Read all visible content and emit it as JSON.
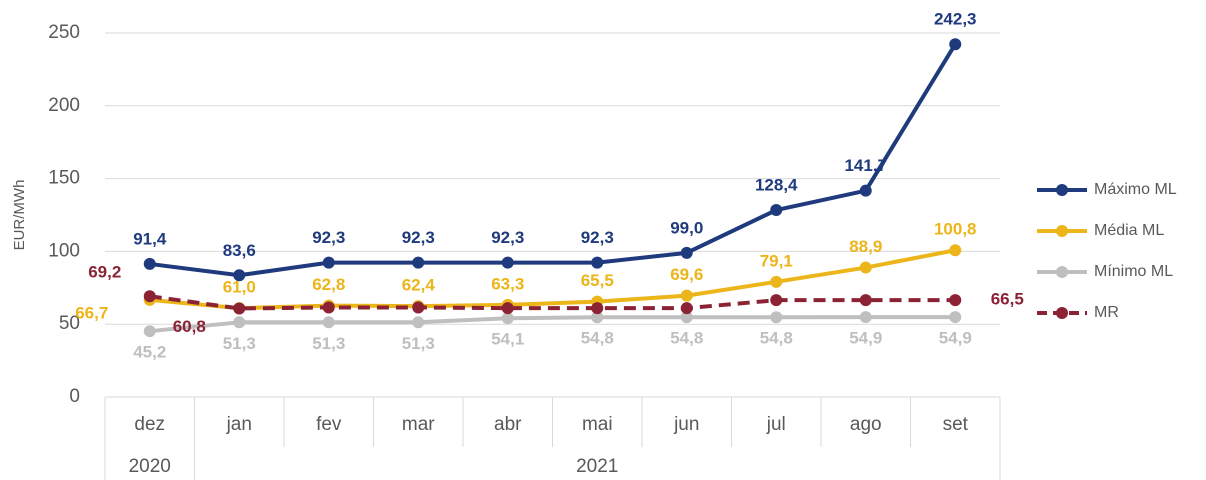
{
  "chart_data": {
    "type": "line",
    "y_label": "EUR/MWh",
    "categories": [
      "dez",
      "jan",
      "fev",
      "mar",
      "abr",
      "mai",
      "jun",
      "jul",
      "ago",
      "set"
    ],
    "x_groups": [
      {
        "label": "2020",
        "count": 1
      },
      {
        "label": "2021",
        "count": 9
      }
    ],
    "series": [
      {
        "name": "Máximo ML",
        "color": "#1f3a7d",
        "dashed": false,
        "values": [
          91.4,
          83.6,
          92.3,
          92.3,
          92.3,
          92.3,
          99.0,
          128.4,
          141.7,
          242.3
        ],
        "value_labels": [
          "91,4",
          "83,6",
          "92,3",
          "92,3",
          "92,3",
          "92,3",
          "99,0",
          "128,4",
          "141,7",
          "242,3"
        ]
      },
      {
        "name": "Média ML",
        "color": "#ecb51a",
        "dashed": false,
        "values": [
          66.7,
          61.0,
          62.8,
          62.4,
          63.3,
          65.5,
          69.6,
          79.1,
          88.9,
          100.8
        ],
        "value_labels": [
          "66,7",
          "61,0",
          "62,8",
          "62,4",
          "63,3",
          "65,5",
          "69,6",
          "79,1",
          "88,9",
          "100,8"
        ]
      },
      {
        "name": "Mínimo ML",
        "color": "#bfbfbf",
        "dashed": false,
        "values": [
          45.2,
          51.3,
          51.3,
          51.3,
          54.1,
          54.8,
          54.8,
          54.8,
          54.9,
          54.9
        ],
        "value_labels": [
          "45,2",
          "51,3",
          "51,3",
          "51,3",
          "54,1",
          "54,8",
          "54,8",
          "54,8",
          "54,9",
          "54,9"
        ]
      },
      {
        "name": "MR",
        "color": "#8b2335",
        "dashed": true,
        "values": [
          69.2,
          60.8,
          61.5,
          61.5,
          61.0,
          61.0,
          61.0,
          66.5,
          66.5,
          66.5
        ],
        "value_labels": [
          "69,2",
          "60,8",
          null,
          null,
          null,
          null,
          null,
          null,
          null,
          "66,5"
        ]
      }
    ],
    "ylim": [
      0,
      260
    ],
    "yticks": [
      0,
      50,
      100,
      150,
      200,
      250
    ],
    "grid": true,
    "legend": "right"
  }
}
